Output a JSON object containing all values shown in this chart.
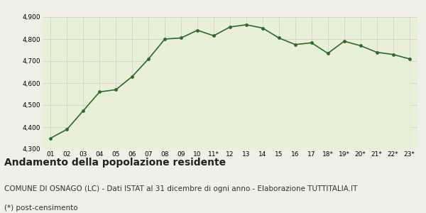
{
  "years": [
    "01",
    "02",
    "03",
    "04",
    "05",
    "06",
    "07",
    "08",
    "09",
    "10",
    "11*",
    "12",
    "13",
    "14",
    "15",
    "16",
    "17",
    "18*",
    "19*",
    "20*",
    "21*",
    "22*",
    "23*"
  ],
  "values": [
    4350,
    4390,
    4475,
    4560,
    4570,
    4630,
    4710,
    4800,
    4805,
    4840,
    4815,
    4855,
    4865,
    4850,
    4805,
    4775,
    4783,
    4735,
    4790,
    4770,
    4740,
    4730,
    4710
  ],
  "line_color": "#2d6a2d",
  "fill_color": "#e8f0d8",
  "marker_color": "#2d6a2d",
  "background_color": "#f0f0e8",
  "grid_color": "#cccccc",
  "ylim": [
    4300,
    4900
  ],
  "yticks": [
    4300,
    4400,
    4500,
    4600,
    4700,
    4800,
    4900
  ],
  "title": "Andamento della popolazione residente",
  "subtitle": "COMUNE DI OSNAGO (LC) - Dati ISTAT al 31 dicembre di ogni anno - Elaborazione TUTTITALIA.IT",
  "footnote": "(*) post-censimento",
  "title_fontsize": 10,
  "subtitle_fontsize": 7.5,
  "footnote_fontsize": 7.5
}
